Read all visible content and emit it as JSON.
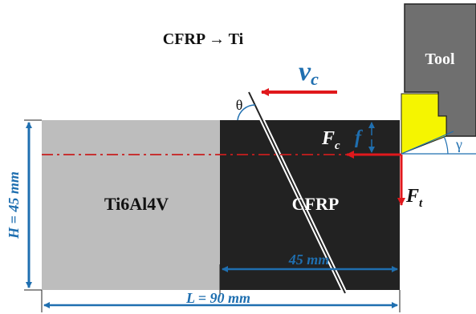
{
  "title": "CFRP → Ti",
  "materials": {
    "left": "Ti6Al4V",
    "right": "CFRP"
  },
  "tool": {
    "label": "Tool"
  },
  "velocity": {
    "symbol": "v",
    "subscript": "c"
  },
  "forces": {
    "cutting": {
      "symbol": "F",
      "subscript": "c"
    },
    "thrust": {
      "symbol": "F",
      "subscript": "t"
    }
  },
  "feed": {
    "symbol": "f"
  },
  "angles": {
    "fiber": "θ",
    "rake": "γ"
  },
  "dimensions": {
    "height": "H = 45 mm",
    "length": "L = 90 mm",
    "cfrp_width": "45 mm"
  },
  "colors": {
    "titanium": "#bdbdbd",
    "cfrp": "#222222",
    "tool_body": "#6f6f6f",
    "tool_edge": "#f5f500",
    "dimension_blue": "#1f6fb0",
    "force_red": "#e0181c",
    "centerline_red": "#c81e1e"
  }
}
